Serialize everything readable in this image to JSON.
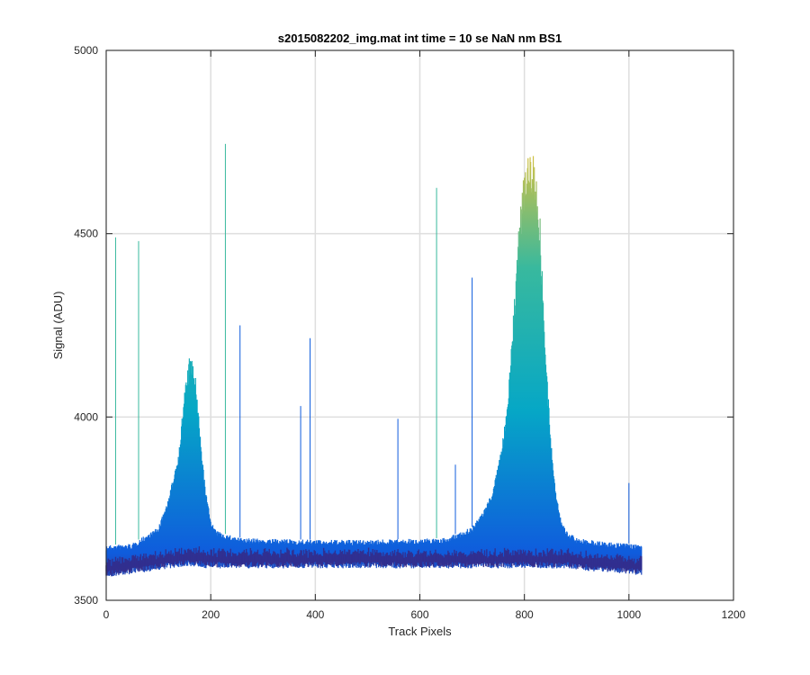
{
  "chart_data": {
    "type": "line",
    "title": "s2015082202_img.mat int time = 10 se  NaN nm BS1",
    "xlabel": "Track Pixels",
    "ylabel": "Signal (ADU)",
    "xlim": [
      0,
      1200
    ],
    "ylim": [
      3500,
      5000
    ],
    "xticks": [
      0,
      200,
      400,
      600,
      800,
      1000,
      1200
    ],
    "yticks": [
      3500,
      4000,
      4500,
      5000
    ],
    "grid": true,
    "colormap": "parula",
    "colors": {
      "low": "#352a87",
      "mid_blue": "#0f5cdd",
      "cyan": "#06a7c6",
      "teal": "#38b99e",
      "yellow": "#f9c32a"
    },
    "series": [
      {
        "x": [
          0,
          50,
          100,
          120,
          140,
          150,
          160,
          170,
          180,
          190,
          200,
          210,
          230,
          260,
          300,
          400,
          500,
          600,
          650,
          700,
          720,
          740,
          760,
          770,
          780,
          790,
          800,
          810,
          820,
          830,
          840,
          850,
          860,
          870,
          880,
          900,
          950,
          1000,
          1024
        ],
        "lower": [
          3580,
          3590,
          3600,
          3605,
          3608,
          3610,
          3610,
          3610,
          3608,
          3605,
          3605,
          3605,
          3605,
          3605,
          3605,
          3605,
          3605,
          3605,
          3605,
          3605,
          3605,
          3605,
          3605,
          3605,
          3605,
          3605,
          3605,
          3605,
          3605,
          3605,
          3605,
          3605,
          3605,
          3605,
          3605,
          3600,
          3595,
          3590,
          3585
        ],
        "upper": [
          3650,
          3655,
          3700,
          3780,
          3920,
          4080,
          4170,
          4130,
          3950,
          3800,
          3720,
          3690,
          3680,
          3670,
          3668,
          3665,
          3665,
          3668,
          3670,
          3700,
          3740,
          3800,
          3950,
          4100,
          4300,
          4550,
          4700,
          4740,
          4720,
          4550,
          4200,
          3950,
          3800,
          3720,
          3690,
          3670,
          3660,
          3655,
          3650
        ]
      }
    ],
    "spikes": [
      {
        "x": 18,
        "y": 4490
      },
      {
        "x": 62,
        "y": 4480
      },
      {
        "x": 228,
        "y": 4745
      },
      {
        "x": 256,
        "y": 4250
      },
      {
        "x": 372,
        "y": 4030
      },
      {
        "x": 390,
        "y": 4215
      },
      {
        "x": 558,
        "y": 3995
      },
      {
        "x": 632,
        "y": 4625
      },
      {
        "x": 668,
        "y": 3870
      },
      {
        "x": 700,
        "y": 4380
      },
      {
        "x": 1000,
        "y": 3820
      }
    ]
  }
}
